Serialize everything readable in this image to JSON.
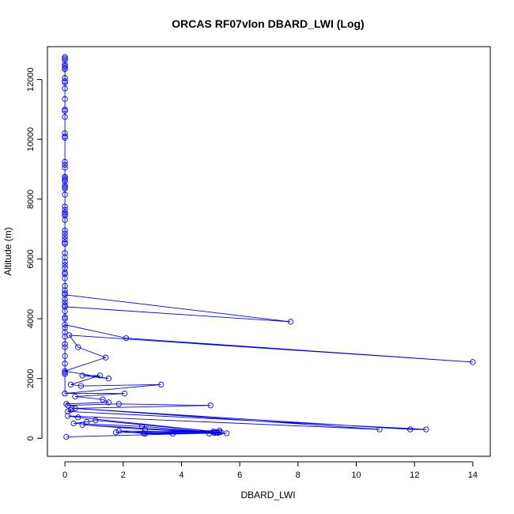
{
  "chart_data": {
    "type": "line",
    "title": "ORCAS RF07vlon DBARD_LWI (Log)",
    "xlabel": "DBARD_LWI",
    "ylabel": "Altitude (m)",
    "xlim": [
      -0.6,
      14.6
    ],
    "ylim": [
      -600,
      13100
    ],
    "xticks": [
      0,
      2,
      4,
      6,
      8,
      10,
      12,
      14
    ],
    "yticks": [
      0,
      2000,
      4000,
      6000,
      8000,
      10000,
      12000
    ],
    "grid": false,
    "marker": "open-circle",
    "color": "#0000ff",
    "series": [
      {
        "x": [
          0,
          0,
          0,
          0,
          0,
          0,
          0,
          0,
          0,
          0,
          0,
          0,
          0,
          0,
          0,
          0,
          0,
          0,
          0,
          0,
          0,
          0,
          0,
          0,
          0,
          0,
          0,
          0,
          0,
          0,
          0,
          0,
          0,
          0,
          0,
          0,
          0,
          0,
          0,
          0,
          0,
          0,
          0,
          0,
          0,
          0,
          0,
          0,
          0,
          0,
          0,
          0,
          0,
          0,
          0,
          0,
          0,
          0,
          0,
          0,
          0,
          0,
          0,
          0,
          0,
          0,
          0,
          0,
          0,
          7.75,
          0,
          0,
          2.1,
          14.0,
          0.15,
          0.45,
          1.4,
          0,
          1.5,
          0.6,
          1.2,
          0.2,
          0.55,
          3.3,
          0,
          2.05,
          0.35,
          1.3,
          1.5,
          0.05,
          0.1,
          1.85,
          5.0,
          0.25,
          0.2,
          0.1,
          12.4,
          11.85,
          0.35,
          10.8,
          0.1,
          0.45,
          5.1,
          1.05,
          0.75,
          0.3,
          2.65,
          5.2,
          2.75,
          0.6,
          5.3,
          1.85,
          2.75,
          5.55,
          3.7,
          5.15,
          1.75,
          5.3,
          2.7,
          5.35,
          4.95,
          5.2,
          5.1,
          5.25,
          0.05
        ],
        "y": [
          12750,
          12700,
          12650,
          12500,
          12450,
          12400,
          12350,
          12050,
          11950,
          11900,
          11700,
          11350,
          11000,
          10950,
          10750,
          10200,
          10100,
          10050,
          9250,
          9150,
          9050,
          8750,
          8700,
          8650,
          8600,
          8450,
          8400,
          8350,
          8150,
          7750,
          7650,
          7550,
          7500,
          7450,
          7300,
          6950,
          6850,
          6750,
          6650,
          6550,
          6500,
          6200,
          6050,
          5900,
          5800,
          5700,
          5550,
          5500,
          5350,
          5100,
          4950,
          4850,
          4650,
          4550,
          4450,
          4250,
          4050,
          4000,
          3700,
          3550,
          3400,
          3150,
          3050,
          2750,
          2500,
          2200,
          2150,
          1500,
          4800,
          3900,
          4400,
          3800,
          3350,
          2550,
          3450,
          3050,
          2700,
          2250,
          2000,
          2100,
          2100,
          1800,
          1750,
          1800,
          1500,
          1500,
          1400,
          1300,
          1200,
          1150,
          1100,
          1150,
          1100,
          1000,
          950,
          900,
          300,
          300,
          1000,
          300,
          750,
          700,
          230,
          600,
          550,
          500,
          400,
          200,
          300,
          450,
          200,
          250,
          150,
          170,
          150,
          180,
          200,
          260,
          170,
          210,
          160,
          200,
          190,
          180,
          50
        ]
      }
    ]
  }
}
